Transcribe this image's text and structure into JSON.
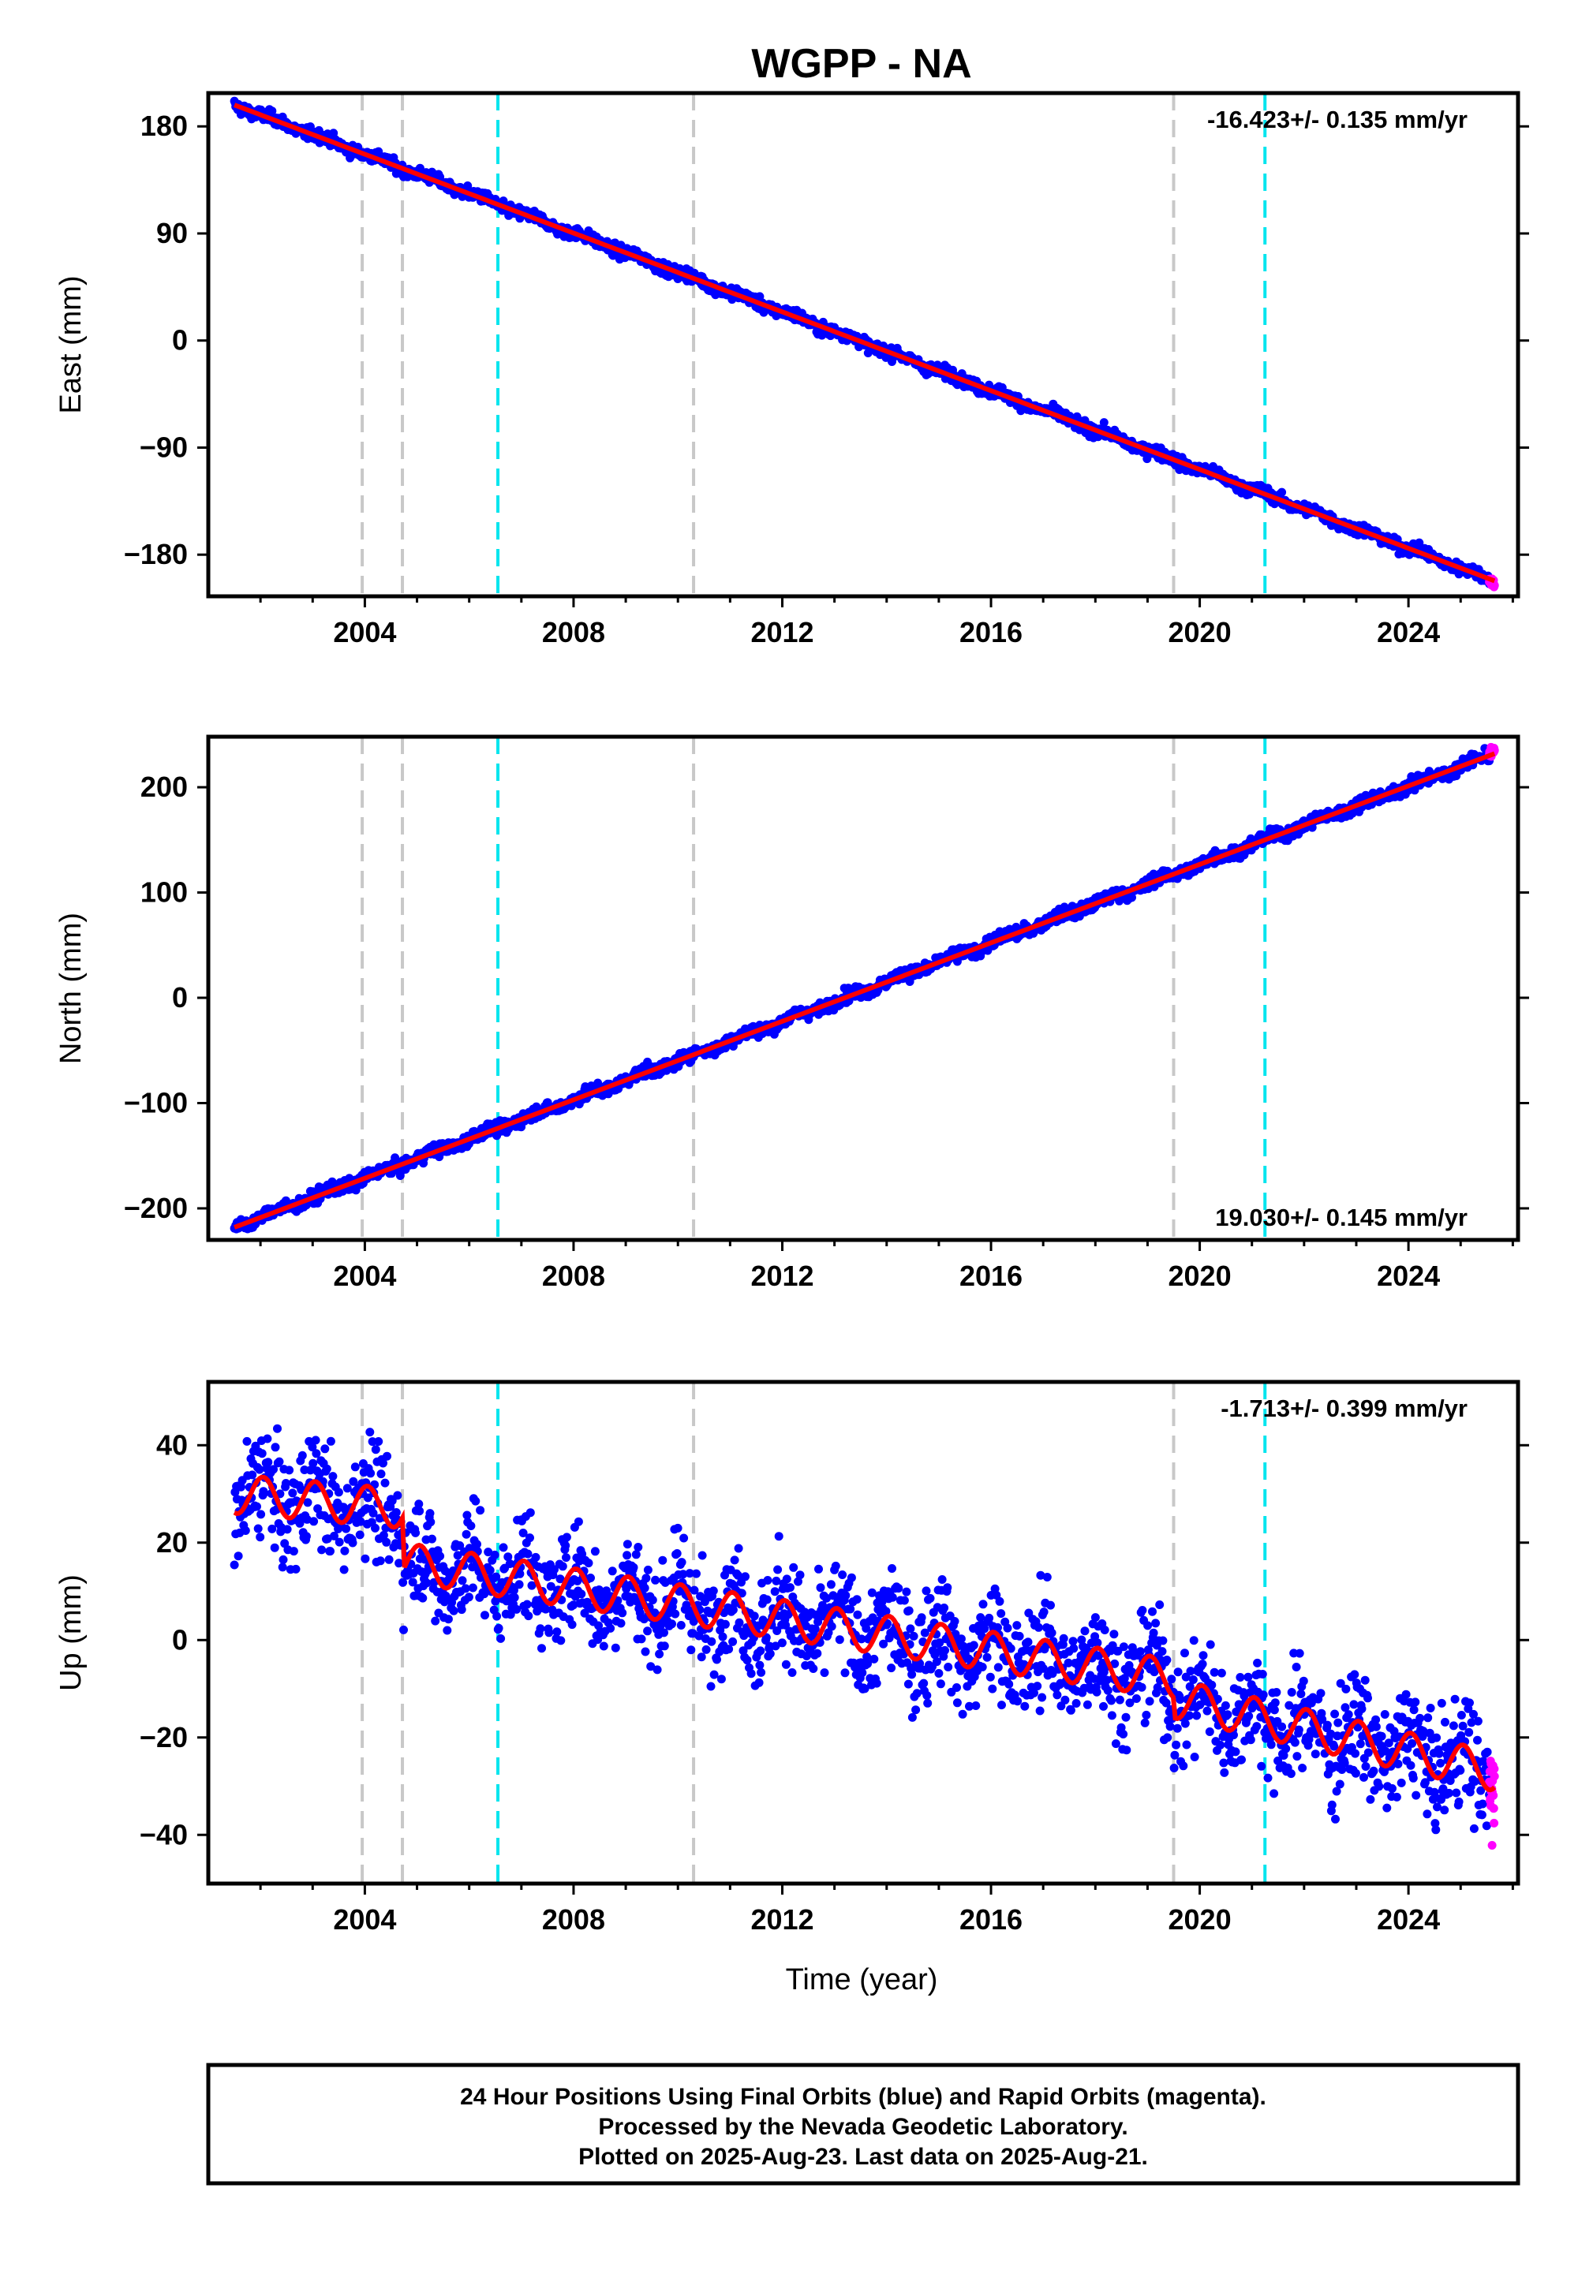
{
  "title": "WGPP - NA",
  "colors": {
    "final_orbits": "#0000ff",
    "rapid_orbits": "#ff00ff",
    "model": "#ff0000",
    "equipment_change": "#c8c8c8",
    "earthquake": "#00e5ee",
    "frame": "#000000"
  },
  "x_label": "Time (year)",
  "x_axis": {
    "range": [
      2001.0,
      2026.1
    ],
    "ticks": [
      2004,
      2008,
      2012,
      2016,
      2020,
      2024
    ]
  },
  "event_lines": {
    "gray": [
      2003.95,
      2004.72,
      2010.3,
      2019.5
    ],
    "cyan": [
      2006.55,
      2021.25
    ]
  },
  "chart_data": [
    {
      "type": "scatter",
      "component": "east",
      "ylabel": "East (mm)",
      "ylim": [
        -215,
        208
      ],
      "yticks": [
        180,
        90,
        0,
        -90,
        -180
      ],
      "rate_text": "-16.423+/- 0.135 mm/yr",
      "rate_position": "top-right",
      "series": [
        {
          "name": "Final Orbits (blue)",
          "x_range": [
            2001.5,
            2025.55
          ],
          "y_start": 198,
          "y_end": -200,
          "noise": 2.5,
          "seasonal_amplitude": 1.5
        },
        {
          "name": "Rapid Orbits (magenta)",
          "x_range": [
            2025.55,
            2025.65
          ],
          "y_start": -202,
          "y_end": -204,
          "noise": 2
        }
      ],
      "model": {
        "rate": -16.423,
        "y_start": 198,
        "y_end": -202
      }
    },
    {
      "type": "scatter",
      "component": "north",
      "ylabel": "North (mm)",
      "ylim": [
        -230,
        248
      ],
      "yticks": [
        200,
        100,
        0,
        -100,
        -200
      ],
      "rate_text": "19.030+/- 0.145 mm/yr",
      "rate_position": "bottom-right",
      "series": [
        {
          "name": "Final Orbits (blue)",
          "x_range": [
            2001.5,
            2025.55
          ],
          "y_start": -218,
          "y_end": 230,
          "noise": 3,
          "seasonal_amplitude": 2
        },
        {
          "name": "Rapid Orbits (magenta)",
          "x_range": [
            2025.55,
            2025.65
          ],
          "y_start": 232,
          "y_end": 235,
          "noise": 2
        }
      ],
      "model": {
        "rate": 19.03,
        "y_start": -218,
        "y_end": 232
      }
    },
    {
      "type": "scatter",
      "component": "up",
      "ylabel": "Up (mm)",
      "ylim": [
        -50,
        53
      ],
      "yticks": [
        40,
        20,
        0,
        -20,
        -40
      ],
      "rate_text": "-1.713+/- 0.399 mm/yr",
      "rate_position": "top-right",
      "series": [
        {
          "name": "Final Orbits (blue)",
          "x_range": [
            2001.5,
            2025.55
          ],
          "noise": 5.5,
          "seasonal_amplitude": 4
        },
        {
          "name": "Rapid Orbits (magenta)",
          "x_range": [
            2025.55,
            2025.65
          ],
          "noise": 5
        }
      ],
      "model": {
        "rate": -1.713,
        "seasonal_amplitude": 4,
        "segments": [
          {
            "from": 2001.5,
            "to": 2004.72,
            "level_start": 30,
            "level_end": 27
          },
          {
            "from": 2004.72,
            "to": 2010.3,
            "level_start": 16,
            "level_end": 7
          },
          {
            "from": 2010.3,
            "to": 2019.5,
            "level_start": 7,
            "level_end": -8
          },
          {
            "from": 2019.5,
            "to": 2025.65,
            "level_start": -12,
            "level_end": -27
          }
        ]
      }
    }
  ],
  "footer": {
    "line1": "24 Hour Positions Using Final Orbits (blue) and Rapid Orbits (magenta).",
    "line2": "Processed by the Nevada Geodetic Laboratory.",
    "line3": "Plotted on 2025-Aug-23. Last data on 2025-Aug-21."
  }
}
